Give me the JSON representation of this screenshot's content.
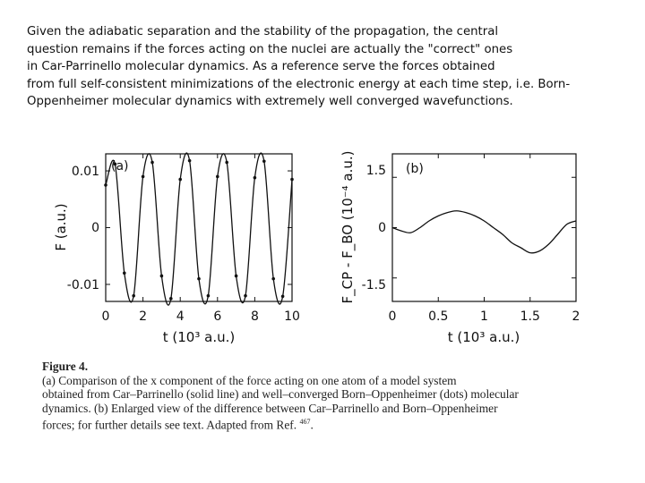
{
  "intro_lines": [
    "Given the adiabatic separation and the stability of the propagation, the central",
    "question remains if the forces acting on the nuclei are actually the \"correct\" ones",
    "in Car-Parrinello molecular dynamics. As a reference serve the forces obtained",
    "from full self-consistent minimizations of the electronic energy at each time step, i.e. Born-",
    "Oppenheimer molecular dynamics with extremely well converged wavefunctions."
  ],
  "caption": {
    "lead": "Figure 4.",
    "lines": [
      "(a) Comparison of the x component of the force acting on one atom of a model system",
      "obtained from Car–Parrinello (solid line) and well–converged Born–Oppenheimer (dots) molecular",
      "dynamics. (b) Enlarged view of the difference between Car–Parrinello and Born–Oppenheimer",
      "forces; for further details see text. Adapted from Ref."
    ],
    "ref": "467"
  },
  "chart_data": [
    {
      "type": "line",
      "panel_label": "(a)",
      "xlabel": "t (10³ a.u.)",
      "ylabel": "F (a.u.)",
      "xlim": [
        0,
        10
      ],
      "ylim": [
        -0.013,
        0.013
      ],
      "x_ticks": [
        "0",
        "2",
        "4",
        "6",
        "8",
        "10"
      ],
      "y_ticks": [
        "0.01",
        "0",
        "-0.01"
      ],
      "series": [
        {
          "style": "solid line with dots",
          "x": [
            0.0,
            0.5,
            1.0,
            1.5,
            2.0,
            2.5,
            3.0,
            3.5,
            4.0,
            4.5,
            5.0,
            5.5,
            6.0,
            6.5,
            7.0,
            7.5,
            8.0,
            8.5,
            9.0,
            9.5,
            10.0
          ],
          "y": [
            0.0075,
            0.0112,
            -0.008,
            -0.012,
            0.009,
            0.0115,
            -0.0085,
            -0.0125,
            0.0085,
            0.0118,
            -0.009,
            -0.012,
            0.009,
            0.0115,
            -0.0085,
            -0.012,
            0.0088,
            0.0117,
            -0.009,
            -0.0121,
            0.0085
          ]
        }
      ]
    },
    {
      "type": "line",
      "panel_label": "(b)",
      "xlabel": "t (10³ a.u.)",
      "ylabel": "F_CP - F_BO (10⁻⁴ a.u.)",
      "xlim": [
        0,
        2
      ],
      "ylim": [
        -2.2,
        2.2
      ],
      "x_ticks": [
        "0",
        "0.5",
        "1",
        "1.5",
        "2"
      ],
      "y_ticks": [
        "1.5",
        "0",
        "-1.5"
      ],
      "series": [
        {
          "style": "solid line",
          "x": [
            0.0,
            0.1,
            0.2,
            0.3,
            0.4,
            0.5,
            0.6,
            0.7,
            0.8,
            0.9,
            1.0,
            1.1,
            1.2,
            1.3,
            1.4,
            1.5,
            1.6,
            1.7,
            1.8,
            1.9,
            2.0
          ],
          "y": [
            0.0,
            -0.1,
            -0.15,
            0.0,
            0.2,
            0.35,
            0.45,
            0.5,
            0.45,
            0.35,
            0.2,
            0.0,
            -0.2,
            -0.45,
            -0.6,
            -0.75,
            -0.7,
            -0.5,
            -0.2,
            0.1,
            0.2
          ]
        }
      ]
    }
  ]
}
